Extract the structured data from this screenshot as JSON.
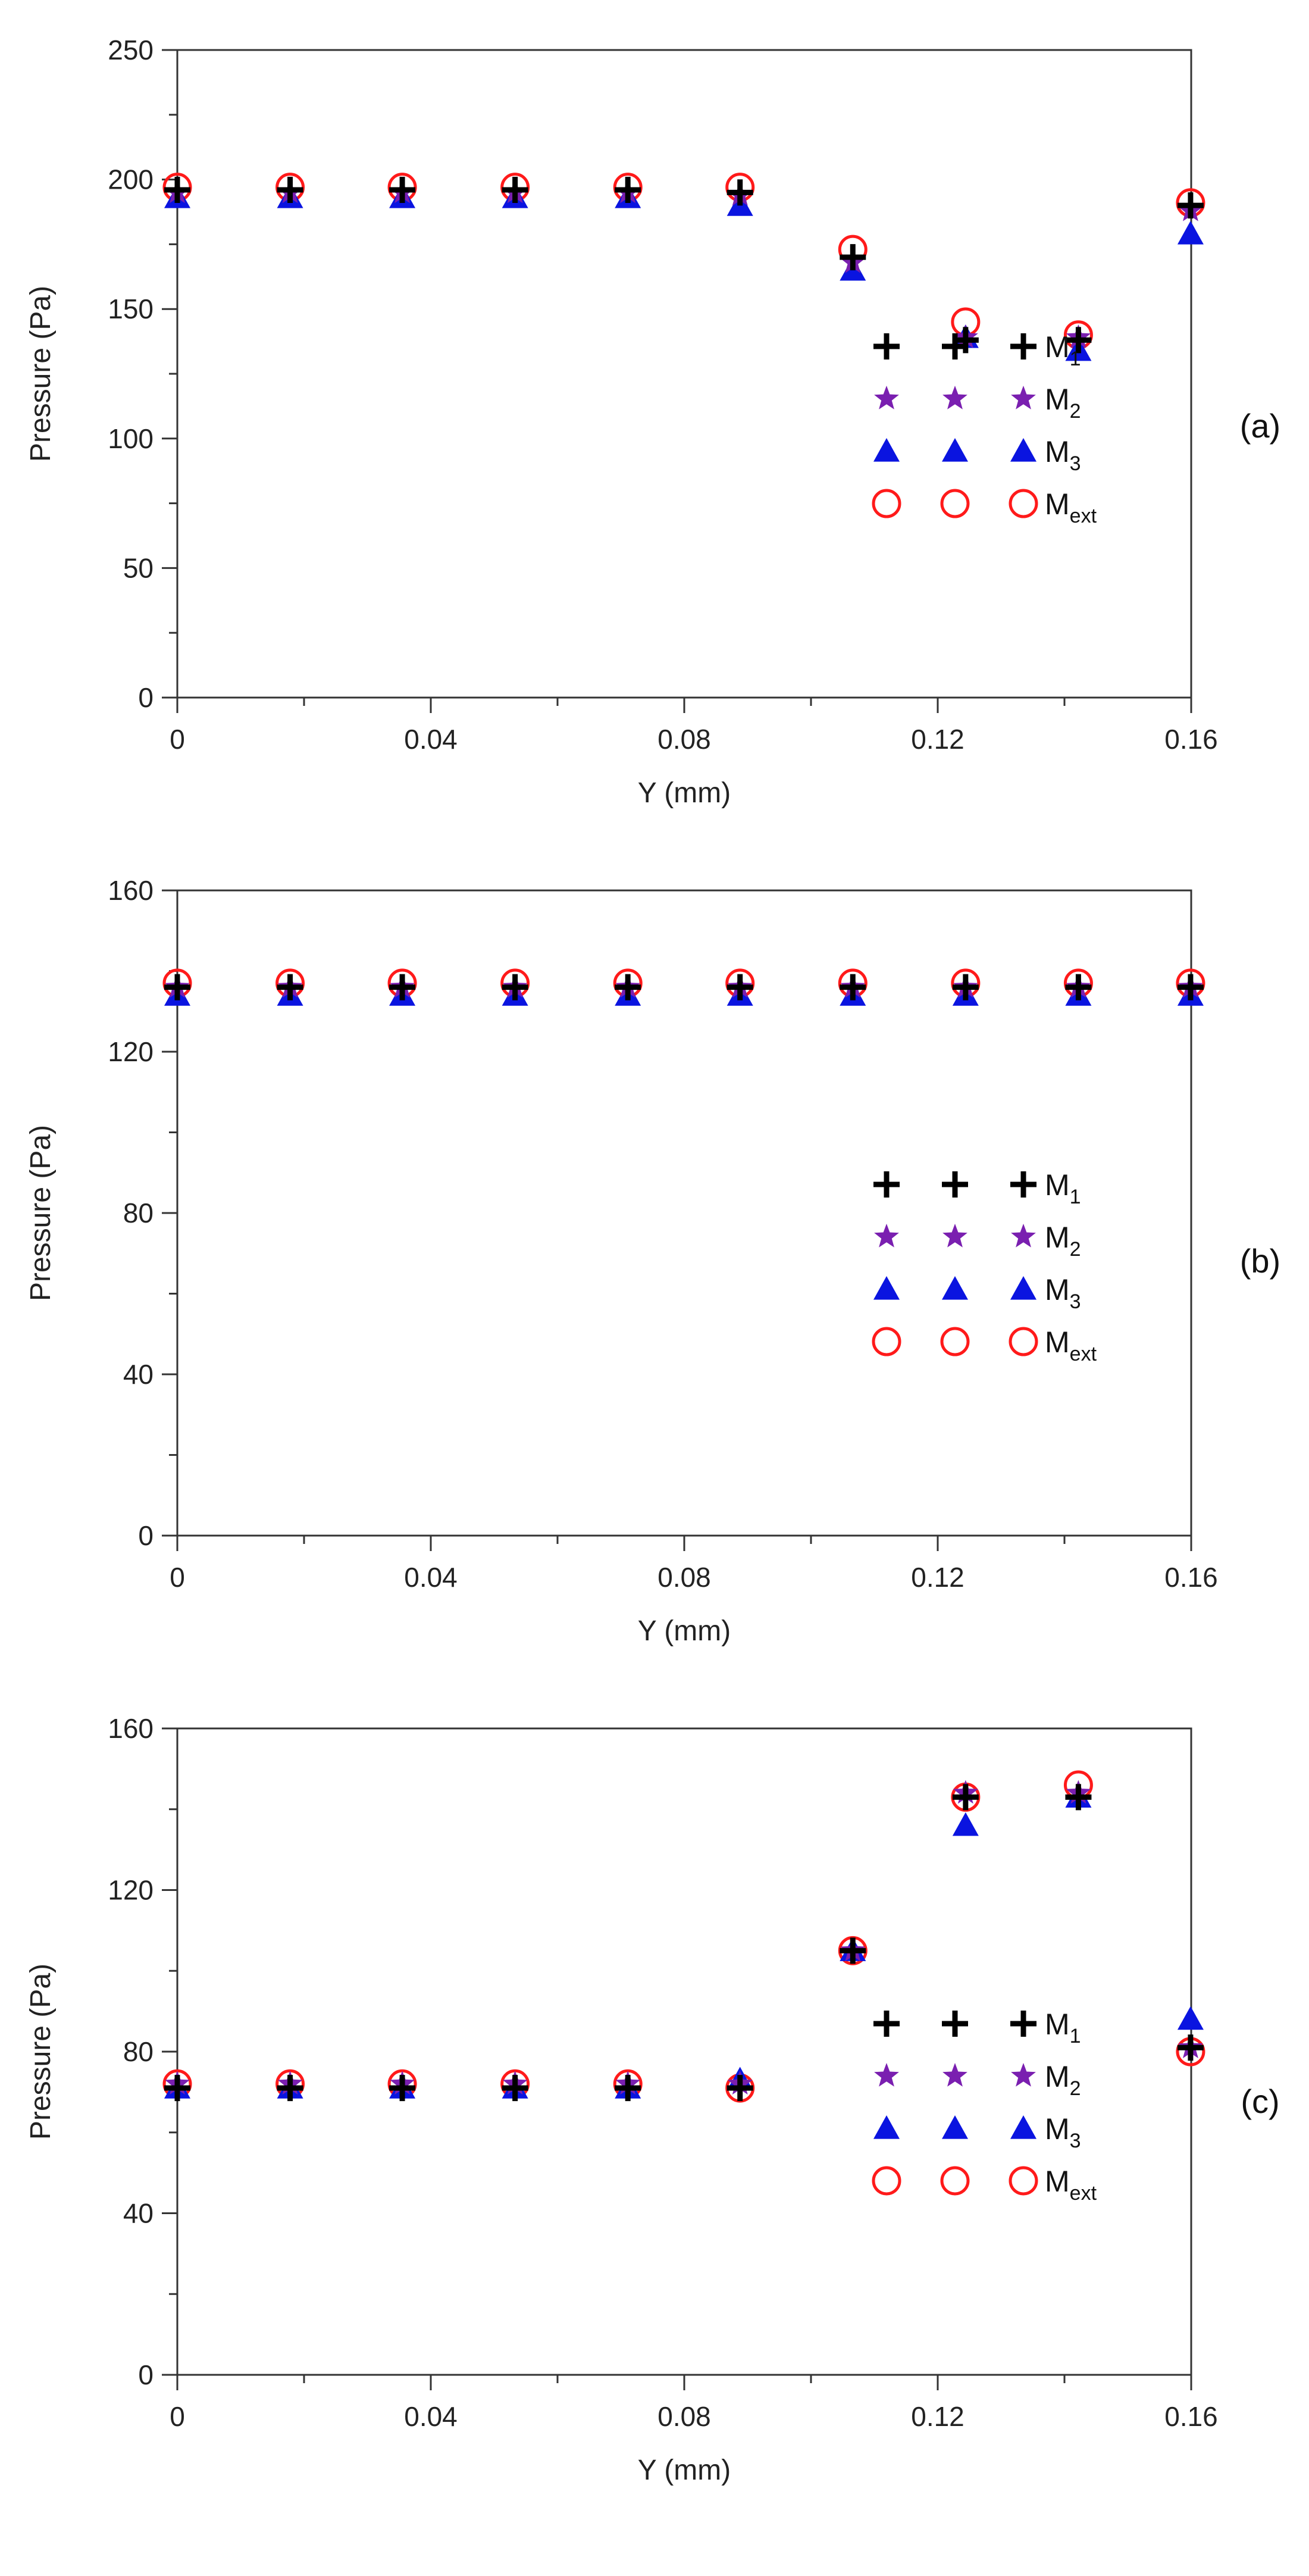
{
  "figure": {
    "description_labels": [
      "(a)",
      "(b)",
      "(c)"
    ]
  },
  "legend": [
    {
      "key": "M1",
      "base": "M",
      "sub": "1",
      "marker": "plus",
      "color": "#000000"
    },
    {
      "key": "M2",
      "base": "M",
      "sub": "2",
      "marker": "star",
      "color": "#7a1fb0"
    },
    {
      "key": "M3",
      "base": "M",
      "sub": "3",
      "marker": "triangle",
      "color": "#0a14e0"
    },
    {
      "key": "Mext",
      "base": "M",
      "sub": "ext",
      "marker": "circle",
      "color": "#ff1a1a"
    }
  ],
  "chart_data": [
    {
      "type": "scatter",
      "panel_label": "(a)",
      "xlabel": "Y (mm)",
      "ylabel": "Pressure (Pa)",
      "xlim": [
        0,
        0.16
      ],
      "ylim": [
        0,
        250
      ],
      "xticks": [
        0,
        0.04,
        0.08,
        0.12,
        0.16
      ],
      "xtick_labels": [
        "0",
        "0.04",
        "0.08",
        "0.12",
        "0.16"
      ],
      "yticks": [
        0,
        50,
        100,
        150,
        200,
        250
      ],
      "ytick_labels": [
        "0",
        "50",
        "100",
        "150",
        "200",
        "250"
      ],
      "x": [
        0,
        0.0178,
        0.0355,
        0.0533,
        0.0711,
        0.0888,
        0.1066,
        0.1244,
        0.1422,
        0.1599
      ],
      "series": [
        {
          "name": "M1",
          "values": [
            196,
            196,
            196,
            196,
            196,
            195,
            170,
            138,
            138,
            190
          ]
        },
        {
          "name": "M2",
          "values": [
            195,
            195,
            195,
            195,
            195,
            194,
            168,
            139,
            139,
            188
          ]
        },
        {
          "name": "M3",
          "values": [
            193,
            193,
            193,
            193,
            193,
            190,
            165,
            139,
            134,
            179
          ]
        },
        {
          "name": "Mext",
          "values": [
            197,
            197,
            197,
            197,
            197,
            197,
            173,
            145,
            140,
            191
          ]
        }
      ],
      "legend_location": "lower-right"
    },
    {
      "type": "scatter",
      "panel_label": "(b)",
      "xlabel": "Y (mm)",
      "ylabel": "Pressure (Pa)",
      "xlim": [
        0,
        0.16
      ],
      "ylim": [
        0,
        160
      ],
      "xticks": [
        0,
        0.04,
        0.08,
        0.12,
        0.16
      ],
      "xtick_labels": [
        "0",
        "0.04",
        "0.08",
        "0.12",
        "0.16"
      ],
      "yticks": [
        0,
        40,
        80,
        120,
        160
      ],
      "ytick_labels": [
        "0",
        "40",
        "80",
        "120",
        "160"
      ],
      "x": [
        0,
        0.0178,
        0.0355,
        0.0533,
        0.0711,
        0.0888,
        0.1066,
        0.1244,
        0.1422,
        0.1599
      ],
      "series": [
        {
          "name": "M1",
          "values": [
            136,
            136,
            136,
            136,
            136,
            136,
            136,
            136,
            136,
            136
          ]
        },
        {
          "name": "M2",
          "values": [
            136,
            136,
            136,
            136,
            136,
            136,
            136,
            136,
            136,
            136
          ]
        },
        {
          "name": "M3",
          "values": [
            134,
            134,
            134,
            134,
            134,
            134,
            134,
            134,
            134,
            134
          ]
        },
        {
          "name": "Mext",
          "values": [
            137,
            137,
            137,
            137,
            137,
            137,
            137,
            137,
            137,
            137
          ]
        }
      ],
      "legend_location": "lower-right"
    },
    {
      "type": "scatter",
      "panel_label": "(c)",
      "xlabel": "Y (mm)",
      "ylabel": "Pressure (Pa)",
      "xlim": [
        0,
        0.16
      ],
      "ylim": [
        0,
        160
      ],
      "xticks": [
        0,
        0.04,
        0.08,
        0.12,
        0.16
      ],
      "xtick_labels": [
        "0",
        "0.04",
        "0.08",
        "0.12",
        "0.16"
      ],
      "yticks": [
        0,
        40,
        80,
        120,
        160
      ],
      "ytick_labels": [
        "0",
        "40",
        "80",
        "120",
        "160"
      ],
      "x": [
        0,
        0.0178,
        0.0355,
        0.0533,
        0.0711,
        0.0888,
        0.1066,
        0.1244,
        0.1422,
        0.1599
      ],
      "series": [
        {
          "name": "M1",
          "values": [
            71,
            71,
            71,
            71,
            71,
            71,
            105,
            143,
            143,
            81
          ]
        },
        {
          "name": "M2",
          "values": [
            72,
            72,
            72,
            72,
            72,
            72,
            105,
            144,
            144,
            81
          ]
        },
        {
          "name": "M3",
          "values": [
            71,
            71,
            71,
            71,
            71,
            73,
            105,
            136,
            143,
            88
          ]
        },
        {
          "name": "Mext",
          "values": [
            72,
            72,
            72,
            72,
            72,
            71,
            105,
            143,
            146,
            80
          ]
        }
      ],
      "legend_location": "lower-right"
    }
  ]
}
